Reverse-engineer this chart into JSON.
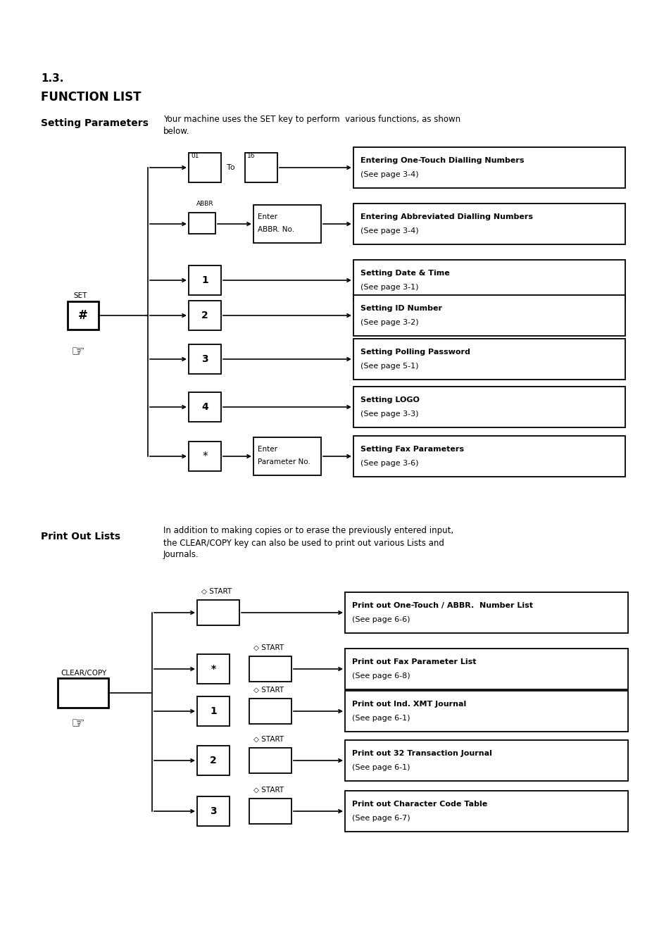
{
  "bg_color": "#ffffff",
  "title_section": "1.3.",
  "title_main": "FUNCTION LIST",
  "section1_label": "Setting Parameters",
  "section1_desc1": "Your machine uses the SET key to perform  various functions, as shown",
  "section1_desc2": "below.",
  "section2_label": "Print Out Lists",
  "section2_desc1": "In addition to making copies or to erase the previously entered input,",
  "section2_desc2": "the CLEAR/COPY key can also be used to print out various Lists and",
  "section2_desc3": "Journals.",
  "set_rows": [
    {
      "key": "01_to_16",
      "box1": "01",
      "box2": "16",
      "mid_label": "To",
      "has_second": true,
      "desc1": "Entering One-Touch Dialling Numbers",
      "desc2": "(See page 3-4)"
    },
    {
      "key": "abbr",
      "box1": "ABBR",
      "box2_line1": "Enter",
      "box2_line2": "ABBR. No.",
      "has_second": true,
      "desc1": "Entering Abbreviated Dialling Numbers",
      "desc2": "(See page 3-4)"
    },
    {
      "key": "1",
      "box1": "1",
      "has_second": false,
      "desc1": "Setting Date & Time",
      "desc2": "(See page 3-1)"
    },
    {
      "key": "2",
      "box1": "2",
      "has_second": false,
      "desc1": "Setting ID Number",
      "desc2": "(See page 3-2)"
    },
    {
      "key": "3",
      "box1": "3",
      "has_second": false,
      "desc1": "Setting Polling Password",
      "desc2": "(See page 5-1)"
    },
    {
      "key": "4",
      "box1": "4",
      "has_second": false,
      "desc1": "Setting LOGO",
      "desc2": "(See page 3-3)"
    },
    {
      "key": "*",
      "box1": "*",
      "box2_line1": "Enter",
      "box2_line2": "Parameter No.",
      "has_second": true,
      "desc1": "Setting Fax Parameters",
      "desc2": "(See page 3-6)"
    }
  ],
  "print_rows": [
    {
      "key": "start_only",
      "desc1": "Print out One-Touch / ABBR.  Number List",
      "desc2": "(See page 6-6)"
    },
    {
      "key": "*",
      "box1": "*",
      "desc1": "Print out Fax Parameter List",
      "desc2": "(See page 6-8)"
    },
    {
      "key": "1",
      "box1": "1",
      "desc1": "Print out Ind. XMT Journal",
      "desc2": "(See page 6-1)"
    },
    {
      "key": "2",
      "box1": "2",
      "desc1": "Print out 32 Transaction Journal",
      "desc2": "(See page 6-1)"
    },
    {
      "key": "3",
      "box1": "3",
      "desc1": "Print out Character Code Table",
      "desc2": "(See page 6-7)"
    }
  ]
}
